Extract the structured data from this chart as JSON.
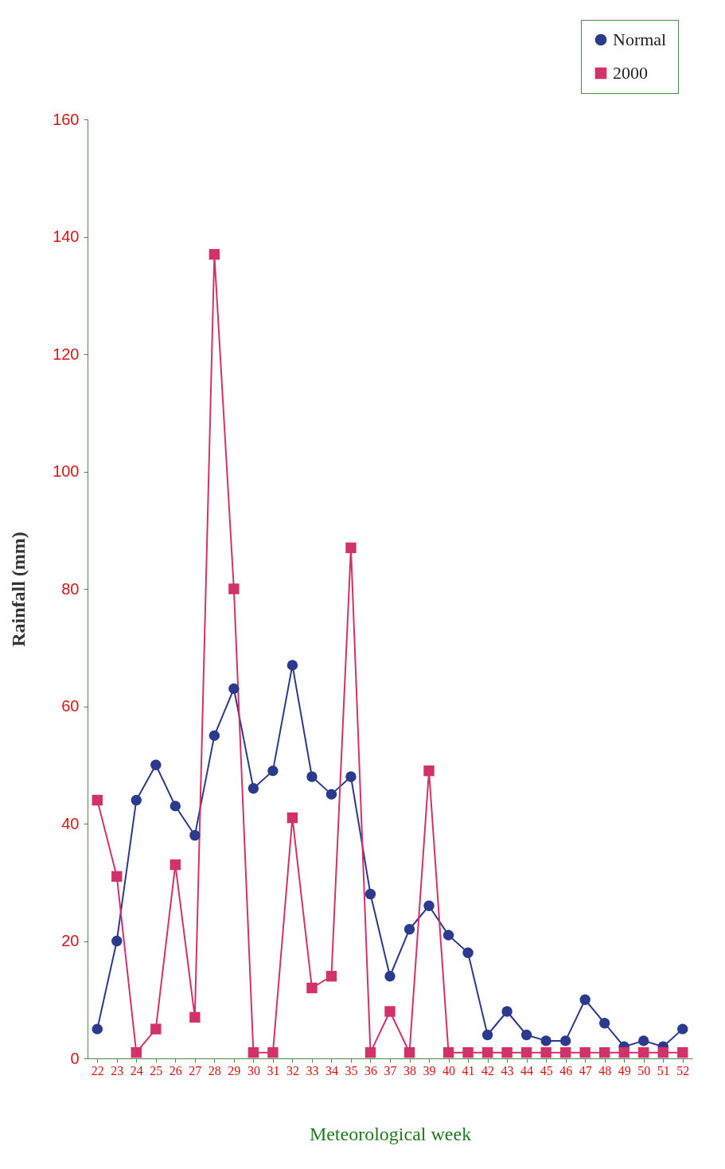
{
  "chart_data": {
    "type": "line",
    "xlabel": "Meteorological week",
    "ylabel": "Rainfall (mm)",
    "x": [
      22,
      23,
      24,
      25,
      26,
      27,
      28,
      29,
      30,
      31,
      32,
      33,
      34,
      35,
      36,
      37,
      38,
      39,
      40,
      41,
      42,
      43,
      44,
      45,
      46,
      47,
      48,
      49,
      50,
      51,
      52
    ],
    "series": [
      {
        "name": "Normal",
        "color": "#2b3a8c",
        "marker": "circle",
        "values": [
          5,
          20,
          44,
          50,
          43,
          38,
          55,
          63,
          46,
          49,
          67,
          48,
          45,
          48,
          28,
          14,
          22,
          26,
          21,
          18,
          4,
          8,
          4,
          3,
          3,
          10,
          6,
          2,
          3,
          2,
          5
        ]
      },
      {
        "name": "2000",
        "color": "#d1326a",
        "marker": "square",
        "values": [
          44,
          31,
          1,
          5,
          33,
          7,
          137,
          80,
          1,
          1,
          41,
          12,
          14,
          87,
          1,
          8,
          1,
          49,
          1,
          1,
          1,
          1,
          1,
          1,
          1,
          1,
          1,
          1,
          1,
          1,
          1
        ]
      }
    ],
    "xlim": [
      21.5,
      52.5
    ],
    "xticks": [
      22,
      23,
      24,
      25,
      26,
      27,
      28,
      29,
      30,
      31,
      32,
      33,
      34,
      35,
      36,
      37,
      38,
      39,
      40,
      41,
      42,
      43,
      44,
      45,
      46,
      47,
      48,
      49,
      50,
      51,
      52
    ],
    "ylim": [
      0,
      160
    ],
    "yticks": [
      0,
      20,
      40,
      60,
      80,
      100,
      120,
      140,
      160
    ],
    "grid": false,
    "legend": "top right",
    "line_style": "solid"
  }
}
